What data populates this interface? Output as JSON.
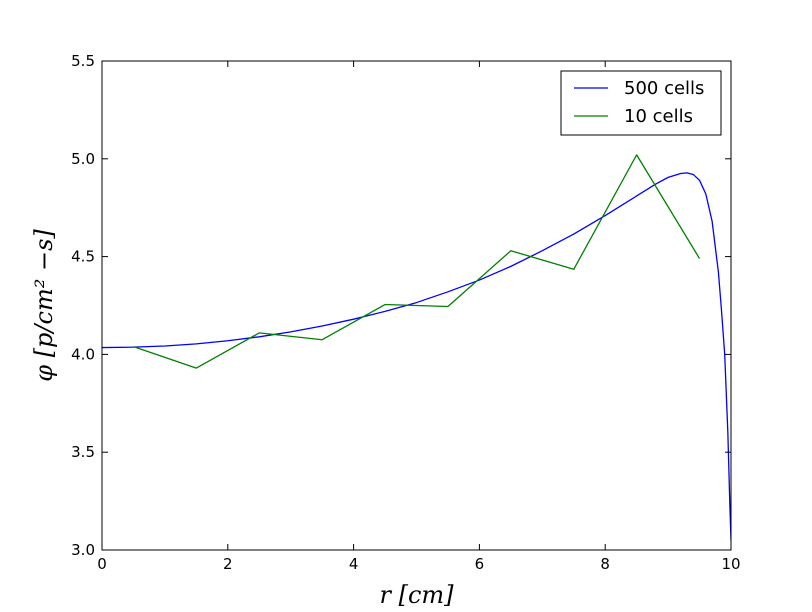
{
  "chart_data": {
    "type": "line",
    "title": "",
    "xlabel": "r [cm]",
    "ylabel": "φ [p/cm² −s]",
    "xlim": [
      0,
      10
    ],
    "ylim": [
      3.0,
      5.5
    ],
    "xticks": [
      0,
      2,
      4,
      6,
      8,
      10
    ],
    "xtick_labels": [
      "0",
      "2",
      "4",
      "6",
      "8",
      "10"
    ],
    "yticks": [
      3.0,
      3.5,
      4.0,
      4.5,
      5.0,
      5.5
    ],
    "ytick_labels": [
      "3.0",
      "3.5",
      "4.0",
      "4.5",
      "5.0",
      "5.5"
    ],
    "grid": false,
    "legend_position": "top-right",
    "series": [
      {
        "name": "500 cells",
        "color": "#0000ff",
        "x": [
          0.0,
          0.5,
          1.0,
          1.5,
          2.0,
          2.5,
          3.0,
          3.5,
          4.0,
          4.5,
          5.0,
          5.5,
          6.0,
          6.5,
          7.0,
          7.5,
          8.0,
          8.5,
          8.8,
          9.0,
          9.2,
          9.3,
          9.4,
          9.5,
          9.6,
          9.7,
          9.8,
          9.85,
          9.9,
          9.95,
          9.98,
          10.0
        ],
        "y": [
          4.035,
          4.037,
          4.043,
          4.054,
          4.07,
          4.09,
          4.115,
          4.145,
          4.18,
          4.22,
          4.265,
          4.32,
          4.38,
          4.45,
          4.53,
          4.615,
          4.71,
          4.81,
          4.87,
          4.905,
          4.925,
          4.928,
          4.92,
          4.89,
          4.82,
          4.68,
          4.42,
          4.22,
          4.0,
          3.6,
          3.25,
          3.05
        ]
      },
      {
        "name": "10 cells",
        "color": "#008000",
        "x": [
          0.5,
          1.5,
          2.5,
          3.5,
          4.5,
          5.5,
          6.5,
          7.5,
          8.5,
          9.5
        ],
        "y": [
          4.04,
          3.93,
          4.11,
          4.075,
          4.255,
          4.245,
          4.53,
          4.435,
          5.02,
          4.49
        ]
      }
    ]
  }
}
